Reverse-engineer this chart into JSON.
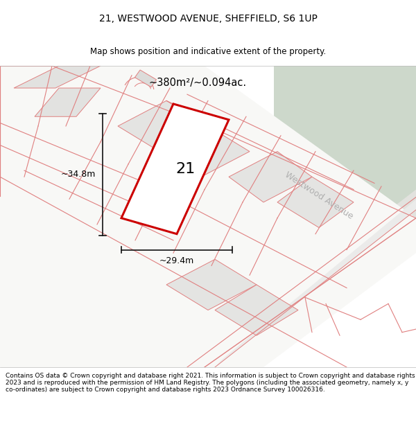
{
  "title_line1": "21, WESTWOOD AVENUE, SHEFFIELD, S6 1UP",
  "title_line2": "Map shows position and indicative extent of the property.",
  "footer_text": "Contains OS data © Crown copyright and database right 2021. This information is subject to Crown copyright and database rights 2023 and is reproduced with the permission of HM Land Registry. The polygons (including the associated geometry, namely x, y co-ordinates) are subject to Crown copyright and database rights 2023 Ordnance Survey 100026316.",
  "area_label": "~380m²/~0.094ac.",
  "dim_height": "~34.8m",
  "dim_width": "~29.4m",
  "plot_number": "21",
  "road_name": "Westwood Avenue",
  "bg_map_color": "#f0f0ee",
  "green_color": "#cdd8cb",
  "road_fill": "#e8e8e4",
  "road_inner_fill": "#f0f0ec",
  "plot_fill": "#f5f5f3",
  "property_line_color": "#e08080",
  "highlight_color": "#cc0000",
  "highlight_fill": "#ffffff",
  "dim_line_color": "#111111",
  "road_text_color": "#b0b0b0",
  "title_fontsize": 10,
  "subtitle_fontsize": 8.5,
  "footer_fontsize": 6.5
}
